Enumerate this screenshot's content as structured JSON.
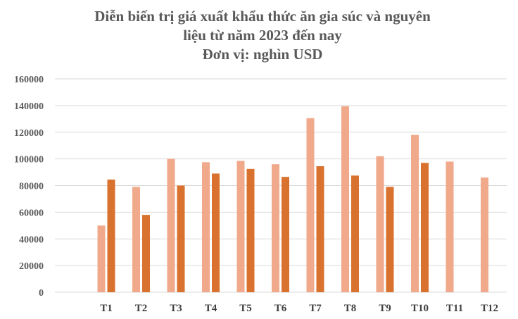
{
  "chart_data": {
    "type": "bar",
    "title_lines": [
      "Diễn biến trị giá xuất khẩu thức ăn gia súc và nguyên",
      "liệu từ năm 2023 đến nay",
      "Đơn vị: nghìn USD"
    ],
    "categories": [
      "T1",
      "T2",
      "T3",
      "T4",
      "T5",
      "T6",
      "T7",
      "T8",
      "T9",
      "T10",
      "T11",
      "T12"
    ],
    "series": [
      {
        "color": "#F0A98A",
        "values": [
          50000,
          79000,
          100000,
          97500,
          98500,
          96000,
          130500,
          139500,
          102000,
          118000,
          98000,
          86000
        ]
      },
      {
        "color": "#D9722E",
        "values": [
          84500,
          58000,
          80000,
          89000,
          92500,
          86500,
          94500,
          87500,
          79000,
          97000,
          null,
          null
        ]
      }
    ],
    "ylim": [
      0,
      160000
    ],
    "yticks": [
      "0",
      "20000",
      "40000",
      "60000",
      "80000",
      "100000",
      "120000",
      "140000",
      "160000"
    ],
    "grid": true,
    "legend": "none"
  }
}
